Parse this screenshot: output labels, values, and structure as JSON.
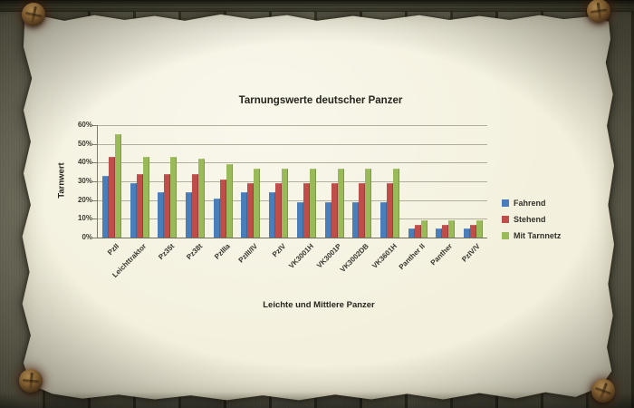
{
  "colors": {
    "paper": "#f3f0dd",
    "wood": "#6b6957",
    "gridline": "#b1af9c",
    "axis": "#7d7b6a",
    "text": "#32312a"
  },
  "chart_data": {
    "type": "bar",
    "title": "Tarnungswerte deutscher Panzer",
    "xlabel": "Leichte und Mittlere Panzer",
    "ylabel": "Tarnwert",
    "ylim": [
      0,
      60
    ],
    "yticks": [
      "0%",
      "10%",
      "20%",
      "30%",
      "40%",
      "50%",
      "60%"
    ],
    "grid": true,
    "legend_position": "right",
    "categories": [
      "PzII",
      "Leichttraktor",
      "Pz35t",
      "Pz38t",
      "PzIIIa",
      "PzIII/IV",
      "PzIV",
      "VK3001H",
      "VK3001P",
      "VK3002DB",
      "VK3601H",
      "Panther II",
      "Panther",
      "PzIV/V"
    ],
    "series": [
      {
        "name": "Fahrend",
        "color": "#4a7ebb",
        "values": [
          33,
          29,
          24,
          24,
          21,
          24,
          24,
          19,
          19,
          19,
          19,
          5,
          5,
          5
        ]
      },
      {
        "name": "Stehend",
        "color": "#bf4d4a",
        "values": [
          43,
          34,
          34,
          34,
          31,
          29,
          29,
          29,
          29,
          29,
          29,
          7,
          7,
          7
        ]
      },
      {
        "name": "Mit Tarnnetz",
        "color": "#9aba59",
        "values": [
          55,
          43,
          43,
          42,
          39,
          37,
          37,
          37,
          37,
          37,
          37,
          9,
          9,
          9
        ]
      }
    ]
  }
}
